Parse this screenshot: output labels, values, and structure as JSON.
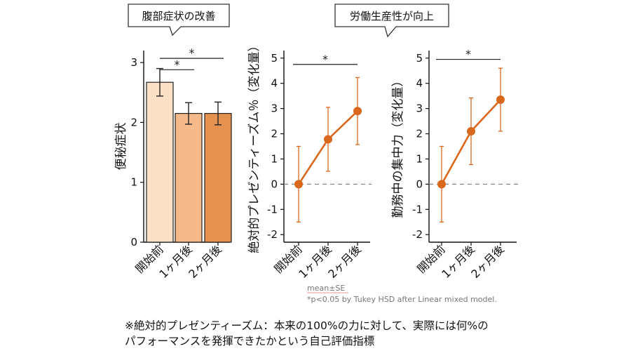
{
  "callouts": {
    "left": "腹部症状の改善",
    "right": "労働生産性が向上"
  },
  "chart_data": [
    {
      "type": "bar",
      "categories": [
        "開始前",
        "1ヶ月後",
        "2ヶ月後"
      ],
      "values": [
        2.67,
        2.15,
        2.15
      ],
      "errors": [
        0.23,
        0.18,
        0.19
      ],
      "bar_colors": [
        "#fde1c6",
        "#f6b98a",
        "#e59150"
      ],
      "ylabel": "便秘症状",
      "ylim": [
        0,
        3.2
      ],
      "yticks": [
        "0",
        "1",
        "2",
        "3"
      ],
      "significance": [
        "*",
        "*"
      ]
    },
    {
      "type": "line",
      "categories": [
        "開始前",
        "1ヶ月後",
        "2ヶ月後"
      ],
      "values": [
        0.0,
        1.78,
        2.9
      ],
      "errors": [
        1.5,
        1.27,
        1.33
      ],
      "color": "#d9681c",
      "ylabel": "絶対的プレゼンティーズム％（変化量）",
      "ylim": [
        -2.3,
        5.3
      ],
      "yticks": [
        "-2",
        "-1",
        "0",
        "1",
        "2",
        "3",
        "4",
        "5"
      ],
      "significance": [
        "*"
      ]
    },
    {
      "type": "line",
      "categories": [
        "開始前",
        "1ヶ月後",
        "2ヶ月後"
      ],
      "values": [
        0.0,
        2.1,
        3.35
      ],
      "errors": [
        1.5,
        1.32,
        1.25
      ],
      "color": "#d9681c",
      "ylabel": "勤務中の集中力（変化量）",
      "ylim": [
        -2.3,
        5.3
      ],
      "yticks": [
        "-2",
        "-1",
        "0",
        "1",
        "2",
        "3",
        "4",
        "5"
      ],
      "significance": [
        "*"
      ]
    }
  ],
  "stats": {
    "mean_se": "mean±SE",
    "note": "*p<0.05 by  Tukey HSD after Linear mixed model."
  },
  "footnote": {
    "line1": "※絶対的プレゼンティーズム：本来の100%の力に対して、実際には何%の",
    "line2": "パフォーマンスを発揮できたかという自己評価指標"
  }
}
